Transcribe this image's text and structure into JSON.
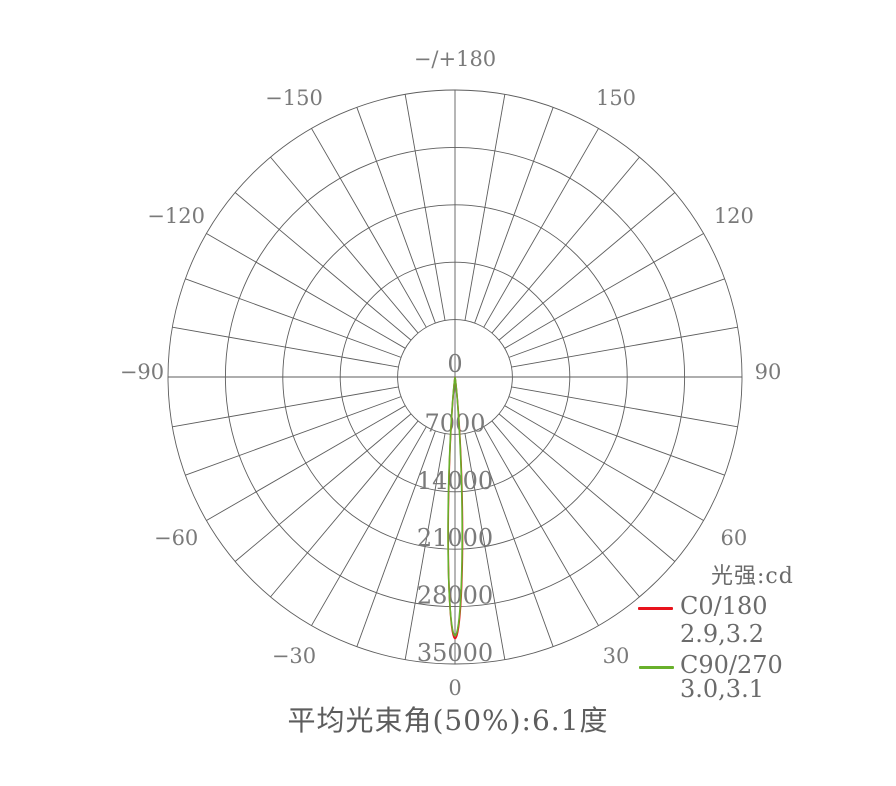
{
  "title": "平均光束角(50%):6.1度",
  "legend": {
    "unit_label": "光强:cd",
    "entries": [
      {
        "label": "C0/180",
        "values": "2.9,3.2",
        "color": "#e8131c"
      },
      {
        "label": "C90/270",
        "values": "3.0,3.1",
        "color": "#68b02b"
      }
    ]
  },
  "chart_data": {
    "type": "line",
    "subtype": "polar-photometric",
    "title": "平均光束角(50%):6.1度",
    "unit": "cd",
    "radial_ticks": [
      0,
      7000,
      14000,
      21000,
      28000,
      35000
    ],
    "radial_max": 35000,
    "angle_grid_step_deg": 10,
    "grid": "on",
    "legend_position": "bottom-right",
    "angle_labels": [
      {
        "deg": 180,
        "label": "−/+180"
      },
      {
        "deg": -150,
        "label": "−150"
      },
      {
        "deg": 150,
        "label": "150"
      },
      {
        "deg": -120,
        "label": "−120"
      },
      {
        "deg": 120,
        "label": "120"
      },
      {
        "deg": -90,
        "label": "−90"
      },
      {
        "deg": 90,
        "label": "90"
      },
      {
        "deg": -60,
        "label": "−60"
      },
      {
        "deg": 60,
        "label": "60"
      },
      {
        "deg": -30,
        "label": "−30"
      },
      {
        "deg": 30,
        "label": "30"
      },
      {
        "deg": 0,
        "label": "0"
      }
    ],
    "series": [
      {
        "name": "C0/180",
        "color": "#e8131c",
        "peak_cd": 31900,
        "half_beam_angles_deg": [
          2.9,
          3.2
        ]
      },
      {
        "name": "C90/270",
        "color": "#68b02b",
        "peak_cd": 31550,
        "half_beam_angles_deg": [
          3.0,
          3.1
        ]
      }
    ],
    "avg_beam_angle_50pct_deg": 6.1
  }
}
